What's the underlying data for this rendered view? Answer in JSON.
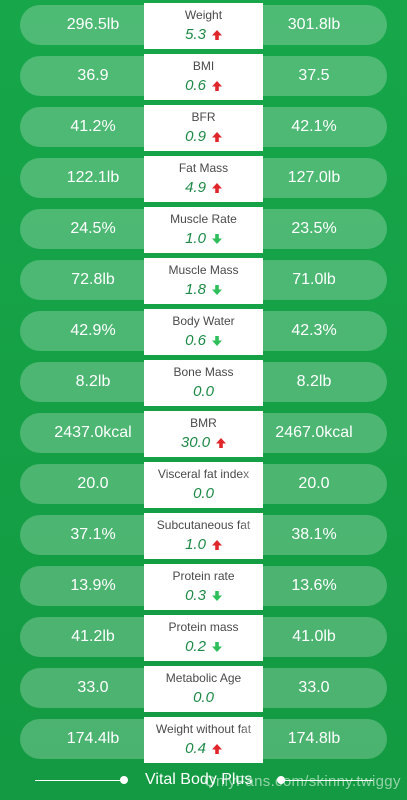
{
  "metrics": [
    {
      "name": "Weight",
      "left": "296.5lb",
      "delta": "5.3",
      "dir": "up",
      "right": "301.8lb"
    },
    {
      "name": "BMI",
      "left": "36.9",
      "delta": "0.6",
      "dir": "up",
      "right": "37.5"
    },
    {
      "name": "BFR",
      "left": "41.2%",
      "delta": "0.9",
      "dir": "up",
      "right": "42.1%"
    },
    {
      "name": "Fat Mass",
      "left": "122.1lb",
      "delta": "4.9",
      "dir": "up",
      "right": "127.0lb"
    },
    {
      "name": "Muscle Rate",
      "left": "24.5%",
      "delta": "1.0",
      "dir": "down",
      "right": "23.5%"
    },
    {
      "name": "Muscle Mass",
      "left": "72.8lb",
      "delta": "1.8",
      "dir": "down",
      "right": "71.0lb"
    },
    {
      "name": "Body Water",
      "left": "42.9%",
      "delta": "0.6",
      "dir": "down",
      "right": "42.3%"
    },
    {
      "name": "Bone Mass",
      "left": "8.2lb",
      "delta": "0.0",
      "dir": "none",
      "right": "8.2lb"
    },
    {
      "name": "BMR",
      "left": "2437.0kcal",
      "delta": "30.0",
      "dir": "up",
      "right": "2467.0kcal"
    },
    {
      "name": "Visceral fat index",
      "left": "20.0",
      "delta": "0.0",
      "dir": "none",
      "right": "20.0"
    },
    {
      "name": "Subcutaneous fat",
      "left": "37.1%",
      "delta": "1.0",
      "dir": "up",
      "right": "38.1%"
    },
    {
      "name": "Protein rate",
      "left": "13.9%",
      "delta": "0.3",
      "dir": "down",
      "right": "13.6%"
    },
    {
      "name": "Protein mass",
      "left": "41.2lb",
      "delta": "0.2",
      "dir": "down",
      "right": "41.0lb"
    },
    {
      "name": "Metabolic Age",
      "left": "33.0",
      "delta": "0.0",
      "dir": "none",
      "right": "33.0"
    },
    {
      "name": "Weight without fat",
      "left": "174.4lb",
      "delta": "0.4",
      "dir": "up",
      "right": "174.8lb"
    }
  ],
  "colors": {
    "up": "#e0262b",
    "down": "#2fbf5a",
    "delta_text": "#1e8a47"
  },
  "footer": {
    "brand": "Vital Body Plus",
    "watermark": "OnlyFans.com/skinny.twiggy"
  }
}
